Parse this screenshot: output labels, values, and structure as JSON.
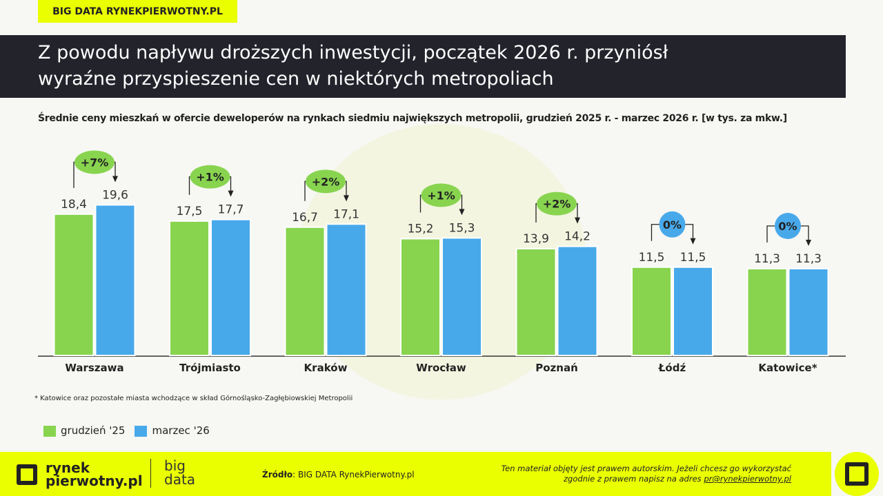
{
  "tag": "BIG DATA RYNEKPIERWOTNY.PL",
  "title_line1": "Z powodu napływu droższych inwestycji, początek 2026 r. przyniósł",
  "title_line2": "wyraźne przyspieszenie cen w niektórych metropoliach",
  "colors": {
    "green": "#88d44f",
    "blue": "#48a9ea",
    "accent": "#eaff00"
  },
  "chart_data": {
    "type": "bar",
    "title": "Średnie ceny mieszkań w ofercie deweloperów na rynkach siedmiu największych metropolii, grudzień 2025 r. - marzec 2026 r. [w tys. za mkw.]",
    "categories": [
      "Warszawa",
      "Trójmiasto",
      "Kraków",
      "Wrocław",
      "Poznań",
      "Łódź",
      "Katowice*"
    ],
    "series": [
      {
        "name": "grudzień '25",
        "values": [
          18.4,
          17.5,
          16.7,
          15.2,
          13.9,
          11.5,
          11.3
        ],
        "labels": [
          "18,4",
          "17,5",
          "16,7",
          "15,2",
          "13,9",
          "11,5",
          "11,3"
        ]
      },
      {
        "name": "marzec '26",
        "values": [
          19.6,
          17.7,
          17.1,
          15.3,
          14.2,
          11.5,
          11.3
        ],
        "labels": [
          "19,6",
          "17,7",
          "17,1",
          "15,3",
          "14,2",
          "11,5",
          "11,3"
        ]
      }
    ],
    "changes": [
      "+7%",
      "+1%",
      "+2%",
      "+1%",
      "+2%",
      "0%",
      "0%"
    ],
    "legend": "bottom-left",
    "grid": false
  },
  "note": "* Katowice oraz pozostałe miasta wchodzące w skład Górnośląsko-Zagłębiowskiej Metropolii",
  "footer": {
    "logo_line1": "rynek",
    "logo_line2": "pierwotny.pl",
    "bigdata1": "big",
    "bigdata2": "data",
    "source_label": "Źródło",
    "source": ": BIG DATA RynekPierwotny.pl",
    "copy1": "Ten materiał objęty jest prawem autorskim. Jeżeli chcesz go wykorzystać",
    "copy2": "zgodnie z prawem napisz na adres ",
    "email": "pr@rynekpierwotny.pl"
  }
}
